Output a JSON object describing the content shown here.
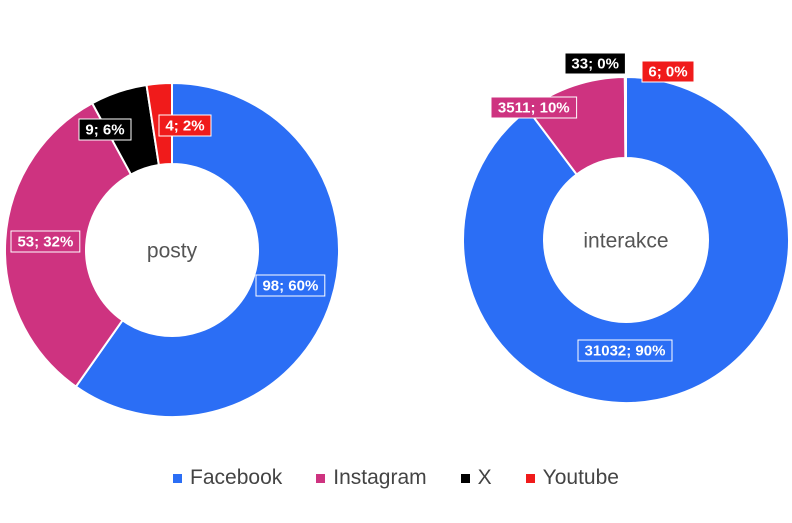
{
  "colors": {
    "Facebook": "#2B6EF5",
    "Instagram": "#CE3380",
    "X": "#000000",
    "Youtube": "#F01B1B"
  },
  "chart_data": [
    {
      "type": "pie",
      "center_label": "posty",
      "slices": [
        {
          "name": "Facebook",
          "value": 98,
          "label": "98; 60%"
        },
        {
          "name": "Instagram",
          "value": 53,
          "label": "53; 32%"
        },
        {
          "name": "X",
          "value": 9,
          "label": "9; 6%"
        },
        {
          "name": "Youtube",
          "value": 4,
          "label": "4; 2%"
        }
      ]
    },
    {
      "type": "pie",
      "center_label": "interakce",
      "slices": [
        {
          "name": "Facebook",
          "value": 31032,
          "label": "31032; 90%"
        },
        {
          "name": "Instagram",
          "value": 3511,
          "label": "3511; 10%"
        },
        {
          "name": "X",
          "value": 33,
          "label": "33; 0%"
        },
        {
          "name": "Youtube",
          "value": 6,
          "label": "6; 0%"
        }
      ]
    }
  ],
  "legend": {
    "items": [
      {
        "name": "Facebook",
        "label": "Facebook"
      },
      {
        "name": "Instagram",
        "label": "Instagram"
      },
      {
        "name": "X",
        "label": "X"
      },
      {
        "name": "Youtube",
        "label": "Youtube"
      }
    ]
  }
}
